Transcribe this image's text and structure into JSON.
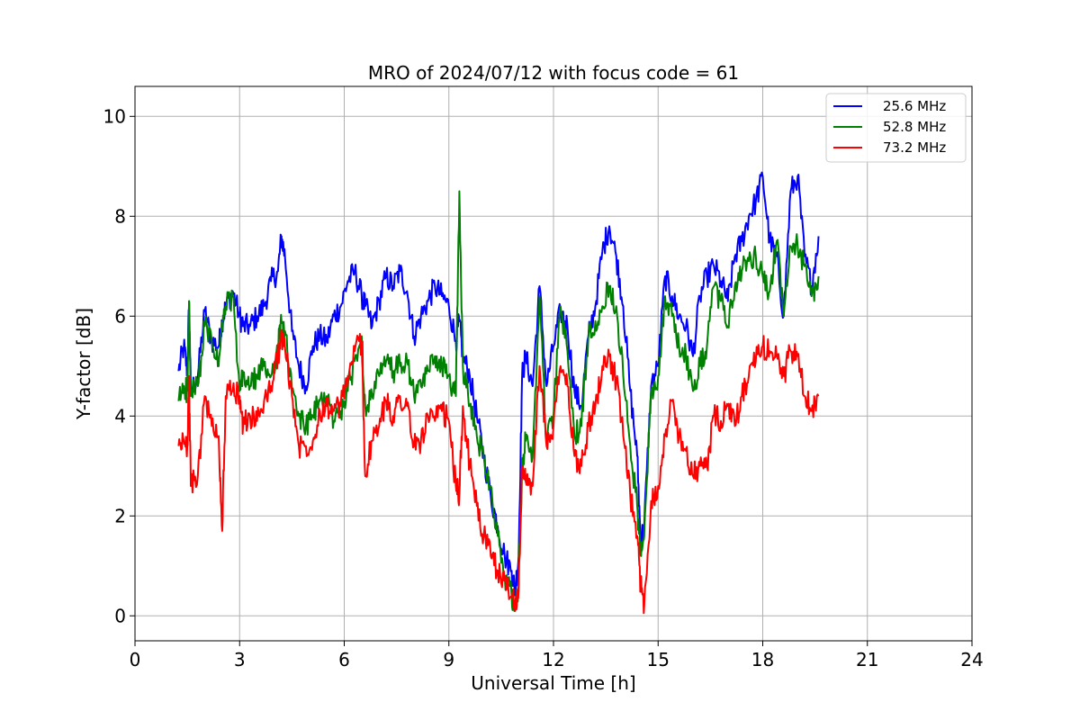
{
  "chart_data": {
    "type": "line",
    "title": "MRO of 2024/07/12 with focus code = 61",
    "xlabel": "Universal Time [h]",
    "ylabel": "Y-factor [dB]",
    "xlim": [
      0,
      24
    ],
    "ylim": [
      -0.5,
      10.6
    ],
    "xticks": [
      0,
      3,
      6,
      9,
      12,
      15,
      18,
      21,
      24
    ],
    "yticks": [
      0,
      2,
      4,
      6,
      8,
      10
    ],
    "grid": true,
    "legend_position": "top-right",
    "series": [
      {
        "name": "25.6 MHz",
        "color": "#0000ff",
        "x": [
          1.25,
          1.4,
          1.5,
          1.55,
          1.6,
          1.8,
          2.0,
          2.2,
          2.4,
          2.5,
          2.6,
          2.8,
          3.0,
          3.1,
          3.3,
          3.5,
          3.7,
          3.9,
          4.1,
          4.2,
          4.3,
          4.5,
          4.7,
          4.9,
          5.1,
          5.3,
          5.5,
          5.7,
          5.9,
          6.1,
          6.3,
          6.5,
          6.6,
          6.8,
          7.0,
          7.2,
          7.4,
          7.6,
          7.8,
          8.0,
          8.2,
          8.4,
          8.6,
          8.8,
          9.0,
          9.2,
          9.3,
          9.4,
          9.6,
          9.8,
          10.0,
          10.2,
          10.4,
          10.6,
          10.8,
          10.9,
          11.0,
          11.1,
          11.2,
          11.4,
          11.6,
          11.8,
          12.0,
          12.2,
          12.4,
          12.6,
          12.8,
          13.0,
          13.2,
          13.4,
          13.6,
          13.8,
          14.0,
          14.2,
          14.4,
          14.5,
          14.6,
          14.8,
          15.0,
          15.2,
          15.4,
          15.6,
          15.8,
          16.0,
          16.2,
          16.4,
          16.6,
          16.8,
          17.0,
          17.2,
          17.4,
          17.6,
          17.8,
          18.0,
          18.2,
          18.4,
          18.6,
          18.8,
          19.0,
          19.2,
          19.4,
          19.6
        ],
        "values": [
          4.9,
          5.4,
          4.9,
          6.3,
          4.5,
          4.8,
          6.1,
          5.5,
          5.4,
          5.9,
          6.2,
          6.5,
          6.0,
          5.8,
          5.8,
          6.0,
          6.2,
          6.7,
          6.9,
          7.6,
          7.2,
          5.7,
          5.0,
          4.6,
          5.4,
          5.6,
          5.5,
          6.0,
          6.2,
          6.7,
          6.9,
          6.4,
          6.2,
          5.8,
          6.3,
          6.8,
          6.6,
          6.9,
          6.5,
          5.6,
          6.0,
          6.3,
          6.6,
          6.4,
          6.2,
          5.5,
          5.9,
          5.2,
          4.8,
          4.0,
          3.2,
          2.4,
          1.8,
          1.2,
          0.9,
          0.5,
          1.2,
          4.8,
          5.2,
          4.6,
          6.6,
          4.6,
          5.4,
          6.1,
          5.8,
          4.5,
          4.2,
          5.6,
          6.2,
          7.3,
          7.8,
          7.2,
          6.2,
          4.5,
          3.2,
          1.5,
          1.8,
          4.6,
          5.0,
          6.8,
          6.4,
          6.0,
          5.8,
          5.2,
          6.4,
          6.8,
          7.0,
          6.7,
          6.3,
          7.2,
          7.5,
          8.0,
          8.3,
          8.8,
          7.5,
          7.2,
          6.0,
          8.5,
          8.8,
          7.2,
          6.6,
          7.6
        ]
      },
      {
        "name": "52.8 MHz",
        "color": "#008000",
        "x": [
          1.25,
          1.4,
          1.5,
          1.55,
          1.6,
          1.8,
          2.0,
          2.2,
          2.4,
          2.5,
          2.6,
          2.8,
          3.0,
          3.1,
          3.3,
          3.5,
          3.7,
          3.9,
          4.1,
          4.2,
          4.3,
          4.5,
          4.7,
          4.9,
          5.1,
          5.3,
          5.5,
          5.7,
          5.9,
          6.1,
          6.3,
          6.5,
          6.6,
          6.8,
          7.0,
          7.2,
          7.4,
          7.6,
          7.8,
          8.0,
          8.2,
          8.4,
          8.6,
          8.8,
          9.0,
          9.2,
          9.3,
          9.4,
          9.6,
          9.8,
          10.0,
          10.2,
          10.4,
          10.6,
          10.8,
          10.9,
          11.0,
          11.1,
          11.2,
          11.4,
          11.6,
          11.8,
          12.0,
          12.2,
          12.4,
          12.6,
          12.8,
          13.0,
          13.2,
          13.4,
          13.6,
          13.8,
          14.0,
          14.2,
          14.4,
          14.5,
          14.6,
          14.8,
          15.0,
          15.2,
          15.4,
          15.6,
          15.8,
          16.0,
          16.2,
          16.4,
          16.6,
          16.8,
          17.0,
          17.2,
          17.4,
          17.6,
          17.8,
          18.0,
          18.2,
          18.4,
          18.6,
          18.8,
          19.0,
          19.2,
          19.4,
          19.6
        ],
        "values": [
          4.3,
          4.6,
          4.5,
          6.3,
          4.4,
          4.6,
          5.8,
          5.5,
          5.0,
          5.8,
          6.2,
          6.4,
          4.5,
          4.8,
          4.6,
          4.8,
          5.0,
          4.8,
          5.4,
          5.9,
          5.7,
          4.5,
          4.0,
          3.8,
          4.0,
          4.3,
          4.4,
          3.9,
          4.1,
          4.5,
          5.1,
          5.6,
          4.2,
          4.4,
          4.8,
          5.1,
          4.9,
          5.0,
          5.1,
          4.4,
          4.6,
          4.9,
          5.2,
          5.0,
          4.8,
          4.4,
          8.5,
          5.0,
          4.2,
          3.6,
          3.2,
          2.6,
          1.6,
          0.8,
          0.4,
          0.1,
          0.6,
          3.0,
          3.5,
          3.2,
          6.4,
          3.5,
          4.0,
          6.2,
          5.3,
          3.6,
          3.8,
          5.6,
          5.9,
          6.2,
          6.6,
          6.2,
          4.8,
          3.4,
          2.2,
          1.2,
          1.6,
          4.5,
          4.8,
          6.4,
          6.0,
          5.4,
          5.2,
          4.5,
          5.0,
          5.4,
          6.6,
          6.3,
          5.8,
          6.6,
          6.9,
          7.1,
          7.2,
          6.8,
          6.5,
          7.5,
          6.0,
          7.4,
          7.4,
          7.0,
          6.4,
          6.8
        ]
      },
      {
        "name": "73.2 MHz",
        "color": "#ff0000",
        "x": [
          1.25,
          1.4,
          1.5,
          1.55,
          1.6,
          1.8,
          2.0,
          2.2,
          2.4,
          2.5,
          2.6,
          2.8,
          3.0,
          3.1,
          3.3,
          3.5,
          3.7,
          3.9,
          4.1,
          4.2,
          4.3,
          4.5,
          4.7,
          4.9,
          5.1,
          5.3,
          5.5,
          5.7,
          5.9,
          6.1,
          6.3,
          6.5,
          6.6,
          6.8,
          7.0,
          7.2,
          7.4,
          7.6,
          7.8,
          8.0,
          8.2,
          8.4,
          8.6,
          8.8,
          9.0,
          9.2,
          9.3,
          9.4,
          9.6,
          9.8,
          10.0,
          10.2,
          10.4,
          10.6,
          10.8,
          10.9,
          11.0,
          11.1,
          11.2,
          11.4,
          11.6,
          11.8,
          12.0,
          12.2,
          12.4,
          12.6,
          12.8,
          13.0,
          13.2,
          13.4,
          13.6,
          13.8,
          14.0,
          14.2,
          14.4,
          14.5,
          14.6,
          14.8,
          15.0,
          15.2,
          15.4,
          15.6,
          15.8,
          16.0,
          16.2,
          16.4,
          16.6,
          16.8,
          17.0,
          17.2,
          17.4,
          17.6,
          17.8,
          18.0,
          18.2,
          18.4,
          18.6,
          18.8,
          19.0,
          19.2,
          19.4,
          19.6
        ],
        "values": [
          3.4,
          3.5,
          3.4,
          4.8,
          2.6,
          2.8,
          4.4,
          3.8,
          3.6,
          1.7,
          4.4,
          4.5,
          4.4,
          3.8,
          4.0,
          3.9,
          4.3,
          4.6,
          5.2,
          5.6,
          5.4,
          4.4,
          3.4,
          3.4,
          3.5,
          4.1,
          4.2,
          4.1,
          4.2,
          4.8,
          5.3,
          5.5,
          2.8,
          3.5,
          3.8,
          4.3,
          4.0,
          4.4,
          4.2,
          3.4,
          3.5,
          4.0,
          3.9,
          4.1,
          3.9,
          2.6,
          2.4,
          4.2,
          3.0,
          2.2,
          1.6,
          1.2,
          0.9,
          0.7,
          0.4,
          0.3,
          0.5,
          3.0,
          2.7,
          2.6,
          5.0,
          3.4,
          3.8,
          5.0,
          4.6,
          3.2,
          3.0,
          3.8,
          4.2,
          5.0,
          5.2,
          4.7,
          3.6,
          2.4,
          1.6,
          0.6,
          0.2,
          2.3,
          2.6,
          3.6,
          4.3,
          3.6,
          3.3,
          2.8,
          3.0,
          3.0,
          4.0,
          3.9,
          4.2,
          3.8,
          4.4,
          4.8,
          5.1,
          5.4,
          5.3,
          5.2,
          4.8,
          5.3,
          5.2,
          4.4,
          4.1,
          4.4
        ]
      }
    ]
  }
}
